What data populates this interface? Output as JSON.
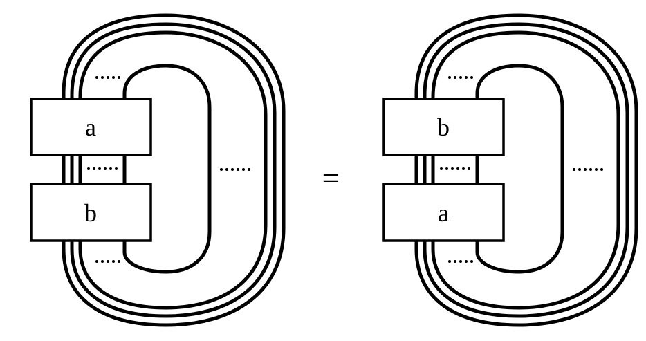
{
  "diagram": {
    "left": {
      "top_label": "a",
      "bottom_label": "b"
    },
    "equals": "=",
    "right": {
      "top_label": "b",
      "bottom_label": "a"
    }
  }
}
